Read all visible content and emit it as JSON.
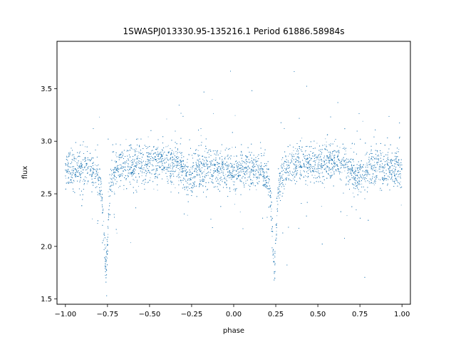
{
  "chart_data": {
    "type": "scatter",
    "title": "1SWASPJ013330.95-135216.1 Period 61886.58984s",
    "xlabel": "phase",
    "ylabel": "flux",
    "xlim": [
      -1.05,
      1.05
    ],
    "ylim": [
      1.45,
      3.95
    ],
    "xticks": [
      -1.0,
      -0.75,
      -0.5,
      -0.25,
      0.0,
      0.25,
      0.5,
      0.75,
      1.0
    ],
    "xtick_labels": [
      "−1.00",
      "−0.75",
      "−0.50",
      "−0.25",
      "0.00",
      "0.25",
      "0.50",
      "0.75",
      "1.00"
    ],
    "yticks": [
      1.5,
      2.0,
      2.5,
      3.0,
      3.5
    ],
    "ytick_labels": [
      "1.5",
      "2.0",
      "2.5",
      "3.0",
      "3.5"
    ],
    "grid": false,
    "color": "#1f77b4",
    "series": [
      {
        "name": "",
        "description_points": [
          {
            "phase": -1.0,
            "flux": 2.76
          },
          {
            "phase": -0.9,
            "flux": 2.76
          },
          {
            "phase": -0.8,
            "flux": 2.6
          },
          {
            "phase": -0.77,
            "flux": 2.25
          },
          {
            "phase": -0.76,
            "flux": 1.9
          },
          {
            "phase": -0.74,
            "flux": 2.35
          },
          {
            "phase": -0.7,
            "flux": 2.72
          },
          {
            "phase": -0.5,
            "flux": 2.78
          },
          {
            "phase": -0.3,
            "flux": 2.7
          },
          {
            "phase": -0.27,
            "flux": 2.6
          },
          {
            "phase": -0.2,
            "flux": 2.7
          },
          {
            "phase": 0.0,
            "flux": 2.76
          },
          {
            "phase": 0.1,
            "flux": 2.76
          },
          {
            "phase": 0.2,
            "flux": 2.6
          },
          {
            "phase": 0.23,
            "flux": 2.25
          },
          {
            "phase": 0.24,
            "flux": 1.9
          },
          {
            "phase": 0.26,
            "flux": 2.35
          },
          {
            "phase": 0.3,
            "flux": 2.72
          },
          {
            "phase": 0.5,
            "flux": 2.78
          },
          {
            "phase": 0.7,
            "flux": 2.7
          },
          {
            "phase": 0.73,
            "flux": 2.6
          },
          {
            "phase": 0.8,
            "flux": 2.7
          },
          {
            "phase": 1.0,
            "flux": 2.76
          }
        ]
      }
    ]
  }
}
